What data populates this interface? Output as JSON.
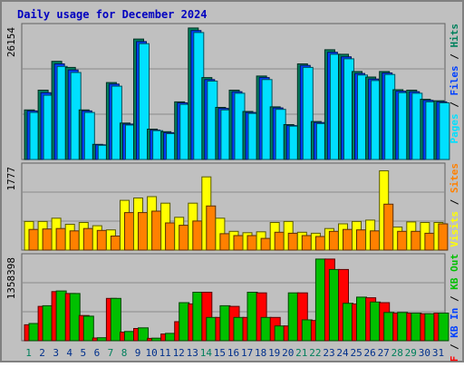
{
  "chart_data": [
    {
      "type": "bar",
      "title": "Daily usage for December 2024",
      "categories": [
        "1",
        "2",
        "3",
        "4",
        "5",
        "6",
        "7",
        "8",
        "9",
        "10",
        "11",
        "12",
        "13",
        "14",
        "15",
        "16",
        "17",
        "18",
        "19",
        "20",
        "21",
        "22",
        "23",
        "24",
        "25",
        "26",
        "27",
        "28",
        "29",
        "30",
        "31"
      ],
      "weekend_days": [
        1,
        7,
        8,
        14,
        21,
        22,
        28,
        29
      ],
      "y_axis_value": "26154",
      "ylim": [
        0,
        26154
      ],
      "series_labels_printed": [
        "Pages",
        "Files",
        "Hits"
      ],
      "series": [
        {
          "name": "Hits",
          "color": "#00805c",
          "values": [
            9800,
            13700,
            19400,
            18200,
            9800,
            3000,
            15200,
            7200,
            23800,
            6000,
            5500,
            11400,
            26000,
            16200,
            10300,
            13700,
            9500,
            16500,
            10400,
            6900,
            18900,
            7500,
            21700,
            20800,
            17400,
            16300,
            17400,
            13800,
            13700,
            11900,
            11600
          ]
        },
        {
          "name": "Files",
          "color": "#0040ff",
          "values": [
            9600,
            13200,
            18900,
            17700,
            9600,
            2900,
            14900,
            7000,
            23300,
            5800,
            5300,
            11200,
            25500,
            15800,
            10100,
            13400,
            9300,
            16200,
            10200,
            6700,
            18600,
            7300,
            21200,
            20300,
            17000,
            15900,
            17100,
            13500,
            13400,
            11700,
            11400
          ]
        },
        {
          "name": "Pages",
          "color": "#00e0ff",
          "values": [
            9300,
            12700,
            18400,
            17200,
            9300,
            2800,
            14500,
            6800,
            22900,
            5700,
            5100,
            10900,
            25100,
            15500,
            9800,
            13100,
            9100,
            15800,
            9900,
            6600,
            18200,
            7100,
            20800,
            19900,
            16700,
            15600,
            16800,
            13200,
            13100,
            11400,
            11200
          ]
        }
      ]
    },
    {
      "type": "bar",
      "categories": [
        "1",
        "2",
        "3",
        "4",
        "5",
        "6",
        "7",
        "8",
        "9",
        "10",
        "11",
        "12",
        "13",
        "14",
        "15",
        "16",
        "17",
        "18",
        "19",
        "20",
        "21",
        "22",
        "23",
        "24",
        "25",
        "26",
        "27",
        "28",
        "29",
        "30",
        "31"
      ],
      "y_axis_value": "1777",
      "ylim": [
        0,
        1777
      ],
      "series_labels_printed": [
        "Visits",
        "Sites"
      ],
      "series": [
        {
          "name": "Visits",
          "color": "#ffff00",
          "values": [
            610,
            610,
            680,
            550,
            590,
            520,
            430,
            1060,
            1110,
            1140,
            1000,
            700,
            1000,
            1560,
            680,
            400,
            370,
            390,
            590,
            610,
            380,
            360,
            460,
            560,
            610,
            640,
            1690,
            490,
            600,
            590,
            590
          ]
        },
        {
          "name": "Sites",
          "color": "#ff8000",
          "values": [
            440,
            450,
            460,
            410,
            460,
            420,
            300,
            800,
            800,
            830,
            580,
            530,
            620,
            940,
            350,
            310,
            310,
            250,
            380,
            360,
            310,
            290,
            400,
            440,
            430,
            410,
            980,
            400,
            400,
            360,
            560
          ]
        }
      ]
    },
    {
      "type": "bar",
      "categories": [
        "1",
        "2",
        "3",
        "4",
        "5",
        "6",
        "7",
        "8",
        "9",
        "10",
        "11",
        "12",
        "13",
        "14",
        "15",
        "16",
        "17",
        "18",
        "19",
        "20",
        "21",
        "22",
        "23",
        "24",
        "25",
        "26",
        "27",
        "28",
        "29",
        "30",
        "31"
      ],
      "y_axis_value": "1358398",
      "ylim": [
        0,
        1358398
      ],
      "series_labels_printed": [
        "KB F",
        "KB In",
        "KB Out"
      ],
      "series": [
        {
          "name": "KB F",
          "color": "#ff0000",
          "values": [
            260000,
            560000,
            800000,
            770000,
            410000,
            45000,
            690000,
            140000,
            200000,
            38000,
            110000,
            310000,
            600000,
            790000,
            380000,
            560000,
            380000,
            780000,
            380000,
            240000,
            780000,
            330000,
            1330000,
            1160000,
            600000,
            700000,
            620000,
            450000,
            450000,
            440000,
            450000
          ]
        },
        {
          "name": "KB Out",
          "color": "#00c000",
          "values": [
            280000,
            570000,
            810000,
            770000,
            400000,
            48000,
            690000,
            150000,
            210000,
            42000,
            120000,
            620000,
            790000,
            380000,
            570000,
            380000,
            790000,
            380000,
            240000,
            780000,
            340000,
            1330000,
            1160000,
            610000,
            710000,
            630000,
            460000,
            460000,
            450000,
            440000,
            450000
          ]
        }
      ]
    }
  ],
  "legend_separator": " / ",
  "colors": {
    "background": "#c0c0c0",
    "frame_outer": "#808080",
    "title_text": "#0000c0",
    "weekday_label": "#00308c",
    "weekend_label": "#00805c",
    "gridline": "#8a8a8a"
  }
}
